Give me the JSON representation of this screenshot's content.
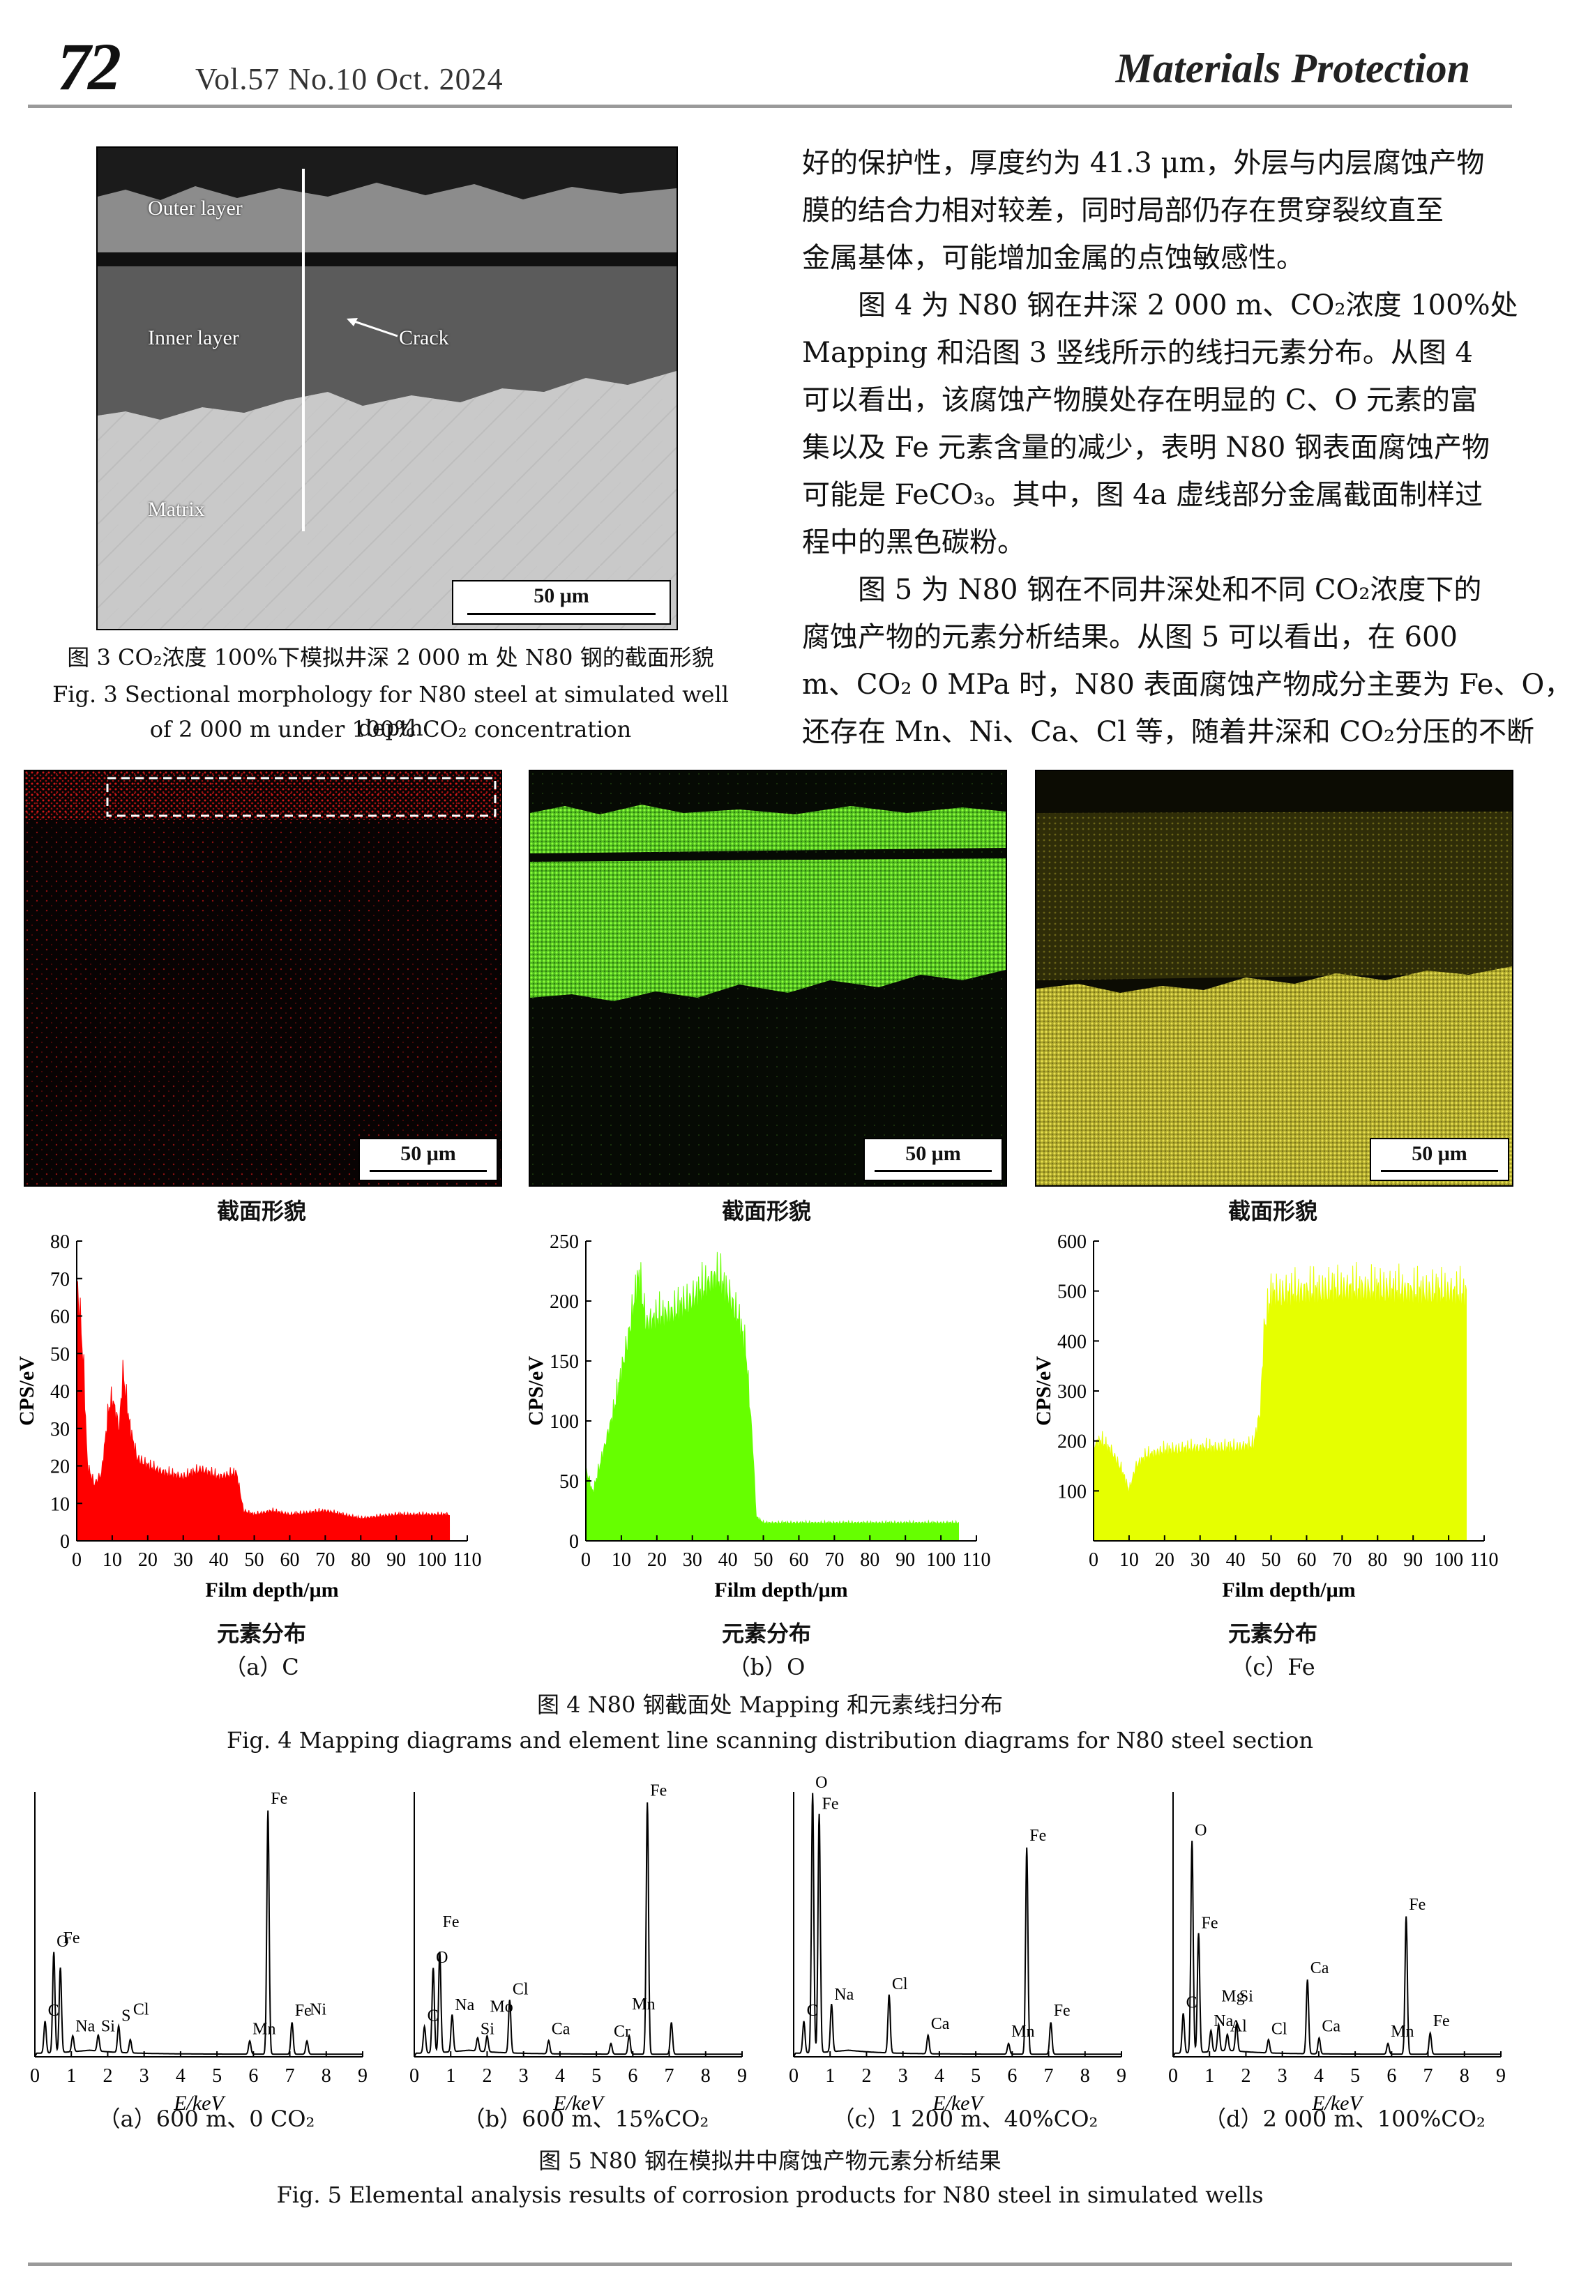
{
  "header": {
    "page_number": "72",
    "volume_info": "Vol.57  No.10  Oct. 2024",
    "journal": "Materials Protection"
  },
  "fig3": {
    "labels": {
      "outer": "Outer layer",
      "inner": "Inner layer",
      "crack": "Crack",
      "matrix": "Matrix"
    },
    "scale": "50 μm",
    "caption_cn": "图 3   CO₂浓度 100%下模拟井深 2 000 m 处 N80 钢的截面形貌",
    "caption_en_1": "Fig. 3   Sectional morphology for N80 steel at simulated well depth",
    "caption_en_2": "of 2 000 m under 100% CO₂ concentration"
  },
  "right_text": [
    "好的保护性，厚度约为 41.3 μm，外层与内层腐蚀产物",
    "膜的结合力相对较差，同时局部仍存在贯穿裂纹直至",
    "金属基体，可能增加金属的点蚀敏感性。",
    "图 4 为 N80 钢在井深 2 000 m、CO₂浓度 100%处",
    "Mapping 和沿图 3 竖线所示的线扫元素分布。从图 4",
    "可以看出，该腐蚀产物膜处存在明显的 C、O 元素的富",
    "集以及 Fe 元素含量的减少，表明 N80 钢表面腐蚀产物",
    "可能是 FeCO₃。其中，图 4a 虚线部分金属截面制样过",
    "程中的黑色碳粉。",
    "图 5 为 N80 钢在不同井深处和不同 CO₂浓度下的",
    "腐蚀产物的元素分析结果。从图 5 可以看出，在 600",
    "m、CO₂ 0 MPa 时，N80 表面腐蚀产物成分主要为 Fe、O，",
    "还存在 Mn、Ni、Ca、Cl 等，随着井深和 CO₂分压的不断"
  ],
  "fig4": {
    "map_scale": "50 μm",
    "map_caption": "截面形貌",
    "dist_caption": "元素分布",
    "ylabel": "CPS/eV",
    "xlabel": "Film depth/μm",
    "sub_labels": [
      "（a）C",
      "（b）O",
      "（c）Fe"
    ],
    "caption_cn": "图 4   N80 钢截面处 Mapping 和元素线扫分布",
    "caption_en": "Fig. 4   Mapping diagrams and element line scanning distribution diagrams for N80 steel section"
  },
  "chart_data": [
    {
      "type": "area",
      "title": "C",
      "color": "#ff0000",
      "xlabel": "Film depth/μm",
      "ylabel": "CPS/eV",
      "xlim": [
        0,
        110
      ],
      "ylim": [
        0,
        80
      ],
      "xticks": [
        0,
        10,
        20,
        30,
        40,
        50,
        60,
        70,
        80,
        90,
        100,
        110
      ],
      "yticks": [
        0,
        10,
        20,
        30,
        40,
        50,
        60,
        70,
        80
      ],
      "x": [
        0,
        1,
        2,
        3,
        5,
        7,
        9,
        10,
        12,
        13,
        15,
        17,
        20,
        25,
        30,
        35,
        40,
        45,
        47,
        50,
        55,
        60,
        70,
        80,
        90,
        100,
        105
      ],
      "y": [
        68,
        60,
        45,
        20,
        15,
        18,
        35,
        38,
        30,
        45,
        30,
        22,
        20,
        18,
        17,
        19,
        17,
        18,
        8,
        7,
        8,
        7,
        8,
        6,
        7,
        7,
        7
      ]
    },
    {
      "type": "area",
      "title": "O",
      "color": "#66ff00",
      "xlabel": "Film depth/μm",
      "ylabel": "CPS/eV",
      "xlim": [
        0,
        110
      ],
      "ylim": [
        0,
        250
      ],
      "xticks": [
        0,
        10,
        20,
        30,
        40,
        50,
        60,
        70,
        80,
        90,
        100,
        110
      ],
      "yticks": [
        0,
        50,
        100,
        150,
        200,
        250
      ],
      "x": [
        0,
        2,
        5,
        8,
        10,
        12,
        14,
        15,
        17,
        20,
        25,
        30,
        35,
        37,
        40,
        43,
        45,
        47,
        48,
        50,
        60,
        70,
        80,
        90,
        100,
        105
      ],
      "y": [
        60,
        40,
        75,
        110,
        140,
        170,
        205,
        220,
        180,
        185,
        190,
        200,
        215,
        220,
        205,
        185,
        160,
        80,
        20,
        15,
        15,
        15,
        15,
        15,
        15,
        15
      ]
    },
    {
      "type": "area",
      "title": "Fe",
      "color": "#e6ff00",
      "xlabel": "Film depth/μm",
      "ylabel": "CPS/eV",
      "xlim": [
        0,
        110
      ],
      "ylim": [
        0,
        600
      ],
      "xticks": [
        0,
        10,
        20,
        30,
        40,
        50,
        60,
        70,
        80,
        90,
        100,
        110
      ],
      "yticks": [
        100,
        200,
        300,
        400,
        500,
        600
      ],
      "x": [
        0,
        2,
        5,
        8,
        10,
        12,
        15,
        20,
        30,
        40,
        45,
        47,
        48,
        50,
        55,
        60,
        70,
        80,
        90,
        100,
        105
      ],
      "y": [
        190,
        200,
        180,
        140,
        100,
        150,
        170,
        180,
        185,
        185,
        190,
        260,
        420,
        490,
        490,
        495,
        500,
        500,
        495,
        495,
        490
      ]
    }
  ],
  "fig5": {
    "xlabel": "E/keV",
    "xticks": [
      "0",
      "1",
      "2",
      "3",
      "4",
      "5",
      "6",
      "7",
      "8",
      "9"
    ],
    "panels": [
      {
        "label": "（a）600 m、0 CO₂",
        "peaks": [
          {
            "e": 0.28,
            "h": 0.12,
            "t": "C"
          },
          {
            "e": 0.52,
            "h": 0.38,
            "t": "O"
          },
          {
            "e": 0.7,
            "h": 0.32,
            "t": "Fe"
          },
          {
            "e": 1.04,
            "h": 0.06,
            "t": "Na"
          },
          {
            "e": 1.74,
            "h": 0.06,
            "t": "Si"
          },
          {
            "e": 2.3,
            "h": 0.1,
            "t": "S"
          },
          {
            "e": 2.62,
            "h": 0.05,
            "t": "Cl"
          },
          {
            "e": 5.9,
            "h": 0.05,
            "t": "Mn"
          },
          {
            "e": 6.4,
            "h": 0.92,
            "t": "Fe"
          },
          {
            "e": 7.06,
            "h": 0.12,
            "t": "Fe"
          },
          {
            "e": 7.47,
            "h": 0.05,
            "t": "Ni"
          }
        ]
      },
      {
        "label": "（b）600 m、15%CO₂",
        "peaks": [
          {
            "e": 0.28,
            "h": 0.1,
            "t": "C"
          },
          {
            "e": 0.52,
            "h": 0.32,
            "t": "O"
          },
          {
            "e": 0.7,
            "h": 0.38,
            "t": "Fe"
          },
          {
            "e": 1.04,
            "h": 0.14,
            "t": "Na"
          },
          {
            "e": 1.74,
            "h": 0.05,
            "t": "Si"
          },
          {
            "e": 2.0,
            "h": 0.06,
            "t": "Mo"
          },
          {
            "e": 2.62,
            "h": 0.2,
            "t": "Cl"
          },
          {
            "e": 3.69,
            "h": 0.05,
            "t": "Ca"
          },
          {
            "e": 5.4,
            "h": 0.04,
            "t": "Cr"
          },
          {
            "e": 5.9,
            "h": 0.07,
            "t": "Mn"
          },
          {
            "e": 6.4,
            "h": 0.95,
            "t": "Fe"
          },
          {
            "e": 7.06,
            "h": 0.12,
            "t": ""
          }
        ]
      },
      {
        "label": "（c）1 200 m、40%CO₂",
        "peaks": [
          {
            "e": 0.28,
            "h": 0.12,
            "t": "C"
          },
          {
            "e": 0.52,
            "h": 0.98,
            "t": "O"
          },
          {
            "e": 0.7,
            "h": 0.9,
            "t": "Fe"
          },
          {
            "e": 1.04,
            "h": 0.18,
            "t": "Na"
          },
          {
            "e": 2.62,
            "h": 0.22,
            "t": "Cl"
          },
          {
            "e": 3.69,
            "h": 0.07,
            "t": "Ca"
          },
          {
            "e": 5.9,
            "h": 0.04,
            "t": "Mn"
          },
          {
            "e": 6.4,
            "h": 0.78,
            "t": "Fe"
          },
          {
            "e": 7.06,
            "h": 0.12,
            "t": "Fe"
          }
        ]
      },
      {
        "label": "（d）2 000 m、100%CO₂",
        "peaks": [
          {
            "e": 0.28,
            "h": 0.15,
            "t": "C"
          },
          {
            "e": 0.52,
            "h": 0.8,
            "t": "O"
          },
          {
            "e": 0.7,
            "h": 0.45,
            "t": "Fe"
          },
          {
            "e": 1.04,
            "h": 0.08,
            "t": "Na"
          },
          {
            "e": 1.25,
            "h": 0.1,
            "t": "Mg"
          },
          {
            "e": 1.49,
            "h": 0.06,
            "t": "Al"
          },
          {
            "e": 1.74,
            "h": 0.1,
            "t": "Si"
          },
          {
            "e": 2.62,
            "h": 0.05,
            "t": "Cl"
          },
          {
            "e": 3.69,
            "h": 0.28,
            "t": "Ca"
          },
          {
            "e": 4.01,
            "h": 0.06,
            "t": "Ca"
          },
          {
            "e": 5.9,
            "h": 0.04,
            "t": "Mn"
          },
          {
            "e": 6.4,
            "h": 0.52,
            "t": "Fe"
          },
          {
            "e": 7.06,
            "h": 0.08,
            "t": "Fe"
          }
        ]
      }
    ],
    "caption_cn": "图 5   N80 钢在模拟井中腐蚀产物元素分析结果",
    "caption_en": "Fig. 5   Elemental analysis results of corrosion products for N80 steel in simulated wells"
  }
}
